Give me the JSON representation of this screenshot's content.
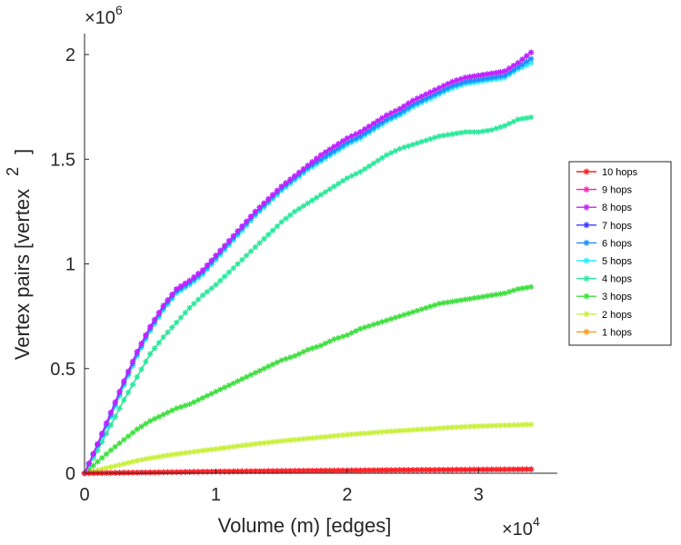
{
  "chart_data": {
    "type": "line",
    "xlabel": "Volume (m) [edges]",
    "ylabel": "Vertex pairs [vertex",
    "ylabel_superscript": "2",
    "ylabel_close": "]",
    "x_multiplier": {
      "base": "×10",
      "exp": "4"
    },
    "y_multiplier": {
      "base": "×10",
      "exp": "6"
    },
    "x_ticks": [
      {
        "v": 0,
        "label": "0"
      },
      {
        "v": 10000,
        "label": "1"
      },
      {
        "v": 20000,
        "label": "2"
      },
      {
        "v": 30000,
        "label": "3"
      }
    ],
    "y_ticks": [
      {
        "v": 0,
        "label": "0"
      },
      {
        "v": 500000,
        "label": "0.5"
      },
      {
        "v": 1000000,
        "label": "1"
      },
      {
        "v": 1500000,
        "label": "1.5"
      },
      {
        "v": 2000000,
        "label": "2"
      }
    ],
    "xlim": [
      0,
      36000
    ],
    "ylim": [
      0,
      2100000
    ],
    "grid": false,
    "legend_position": "right",
    "x": [
      0,
      1000,
      2000,
      3000,
      4000,
      5000,
      6000,
      7000,
      8000,
      9000,
      10000,
      11000,
      12000,
      13000,
      14000,
      15000,
      16000,
      17000,
      18000,
      19000,
      20000,
      21000,
      22000,
      23000,
      24000,
      25000,
      26000,
      27000,
      28000,
      29000,
      30000,
      31000,
      32000,
      33000,
      34000
    ],
    "series": [
      {
        "name": "10 hops",
        "color": "#ff1f1f",
        "values": [
          0,
          800,
          1600,
          2400,
          3200,
          4000,
          4800,
          5600,
          6400,
          7200,
          8000,
          8600,
          9200,
          9800,
          10400,
          11000,
          11500,
          12000,
          12500,
          13000,
          13500,
          14000,
          14400,
          14800,
          15200,
          15600,
          16000,
          16400,
          16800,
          17200,
          17600,
          18000,
          18400,
          18800,
          19200
        ]
      },
      {
        "name": "9 hops",
        "color": "#ff1fb4",
        "values": [
          0,
          800,
          1600,
          2400,
          3200,
          4000,
          4800,
          5600,
          6400,
          7200,
          8000,
          8600,
          9200,
          9800,
          10400,
          11000,
          11500,
          12000,
          12500,
          13000,
          13500,
          14000,
          14400,
          14800,
          15200,
          15600,
          16000,
          16400,
          16800,
          17200,
          17600,
          18000,
          18400,
          18800,
          19200
        ]
      },
      {
        "name": "8 hops",
        "color": "#c81fff",
        "values": [
          0,
          140000,
          290000,
          440000,
          580000,
          700000,
          800000,
          880000,
          920000,
          970000,
          1040000,
          1110000,
          1180000,
          1250000,
          1310000,
          1370000,
          1420000,
          1470000,
          1520000,
          1560000,
          1600000,
          1630000,
          1670000,
          1710000,
          1740000,
          1780000,
          1810000,
          1840000,
          1870000,
          1890000,
          1900000,
          1910000,
          1920000,
          1960000,
          2010000
        ]
      },
      {
        "name": "7 hops",
        "color": "#3a3aff",
        "values": [
          0,
          140000,
          290000,
          440000,
          580000,
          700000,
          800000,
          880000,
          920000,
          970000,
          1040000,
          1110000,
          1180000,
          1250000,
          1310000,
          1370000,
          1420000,
          1470000,
          1520000,
          1560000,
          1600000,
          1630000,
          1670000,
          1710000,
          1740000,
          1780000,
          1810000,
          1840000,
          1870000,
          1890000,
          1900000,
          1910000,
          1920000,
          1960000,
          2010000
        ]
      },
      {
        "name": "6 hops",
        "color": "#1f8cff",
        "values": [
          0,
          135000,
          280000,
          430000,
          570000,
          690000,
          790000,
          870000,
          910000,
          960000,
          1030000,
          1100000,
          1170000,
          1240000,
          1300000,
          1360000,
          1410000,
          1460000,
          1500000,
          1540000,
          1580000,
          1610000,
          1650000,
          1690000,
          1720000,
          1760000,
          1790000,
          1820000,
          1850000,
          1870000,
          1880000,
          1890000,
          1900000,
          1940000,
          1980000
        ]
      },
      {
        "name": "5 hops",
        "color": "#24ecff",
        "values": [
          0,
          130000,
          270000,
          420000,
          560000,
          680000,
          780000,
          860000,
          900000,
          950000,
          1020000,
          1090000,
          1160000,
          1230000,
          1290000,
          1350000,
          1400000,
          1450000,
          1490000,
          1530000,
          1570000,
          1600000,
          1640000,
          1680000,
          1710000,
          1750000,
          1780000,
          1810000,
          1840000,
          1860000,
          1870000,
          1880000,
          1890000,
          1930000,
          1960000
        ]
      },
      {
        "name": "4 hops",
        "color": "#2ae89a",
        "values": [
          0,
          110000,
          230000,
          350000,
          460000,
          570000,
          650000,
          720000,
          790000,
          850000,
          900000,
          960000,
          1020000,
          1080000,
          1140000,
          1200000,
          1250000,
          1290000,
          1330000,
          1370000,
          1410000,
          1440000,
          1480000,
          1520000,
          1550000,
          1570000,
          1590000,
          1610000,
          1620000,
          1630000,
          1630000,
          1640000,
          1660000,
          1690000,
          1700000
        ]
      },
      {
        "name": "3 hops",
        "color": "#3fdf3f",
        "values": [
          0,
          55000,
          110000,
          160000,
          210000,
          250000,
          280000,
          310000,
          330000,
          360000,
          390000,
          420000,
          450000,
          480000,
          510000,
          540000,
          560000,
          590000,
          610000,
          640000,
          660000,
          690000,
          710000,
          730000,
          750000,
          770000,
          790000,
          810000,
          820000,
          830000,
          840000,
          850000,
          860000,
          880000,
          890000
        ]
      },
      {
        "name": "2 hops",
        "color": "#c8f03c",
        "values": [
          0,
          15000,
          30000,
          45000,
          60000,
          72000,
          82000,
          92000,
          100000,
          108000,
          116000,
          124000,
          132000,
          140000,
          147000,
          154000,
          160000,
          166000,
          172000,
          178000,
          184000,
          189000,
          194000,
          199000,
          203000,
          207000,
          211000,
          215000,
          219000,
          222000,
          225000,
          227000,
          229000,
          231000,
          233000
        ]
      },
      {
        "name": "1 hops",
        "color": "#ff9c1a",
        "values": [
          0,
          800,
          1600,
          2400,
          3200,
          4000,
          4800,
          5600,
          6400,
          7200,
          8000,
          8600,
          9200,
          9800,
          10400,
          11000,
          11500,
          12000,
          12500,
          13000,
          13500,
          14000,
          14400,
          14800,
          15200,
          15600,
          16000,
          16400,
          16800,
          17200,
          17600,
          18000,
          18400,
          18800,
          19200
        ]
      }
    ]
  }
}
